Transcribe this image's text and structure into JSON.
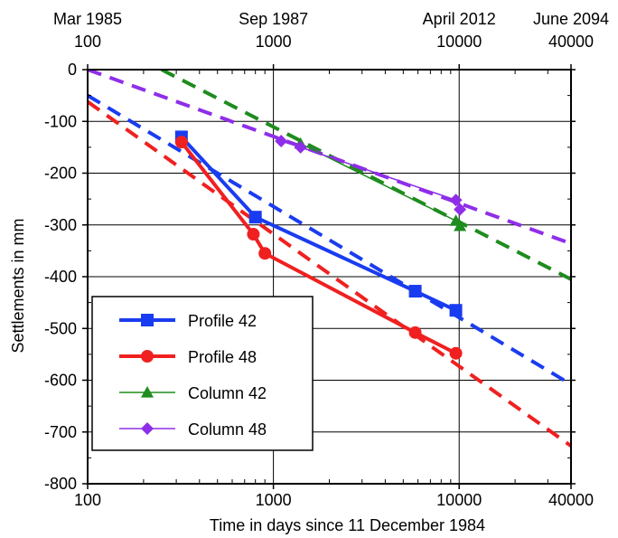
{
  "chart_data": {
    "type": "line",
    "xscale": "log",
    "xlim": [
      100,
      40000
    ],
    "ylim": [
      -800,
      0
    ],
    "grid": true,
    "xlabel": "Time in days since 11 December 1984",
    "ylabel": "Settlements in mm",
    "x_ticks": [
      100,
      1000,
      10000,
      40000
    ],
    "x_tick_labels": [
      "100",
      "1000",
      "10000",
      "40000"
    ],
    "y_ticks": [
      0,
      -100,
      -200,
      -300,
      -400,
      -500,
      -600,
      -700,
      -800
    ],
    "y_tick_labels": [
      "0",
      "-100",
      "-200",
      "-300",
      "-400",
      "-500",
      "-600",
      "-700",
      "-800"
    ],
    "top_axis": {
      "ticks": [
        100,
        1000,
        10000,
        40000
      ],
      "date_labels": [
        "Mar 1985",
        "Sep 1987",
        "April 2012",
        "June 2094"
      ],
      "day_labels": [
        "100",
        "1000",
        "10000",
        "40000"
      ]
    },
    "legend_position": "bottom-left",
    "series": [
      {
        "name": "Profile 42",
        "color": "#1a3cf0",
        "marker": "square",
        "style": "solid",
        "x": [
          320,
          800,
          5800,
          9600
        ],
        "y": [
          -130,
          -285,
          -428,
          -465
        ]
      },
      {
        "name": "Profile 48",
        "color": "#f02020",
        "marker": "circle",
        "style": "solid",
        "x": [
          320,
          780,
          900,
          5800,
          9600
        ],
        "y": [
          -140,
          -318,
          -355,
          -508,
          -548
        ]
      },
      {
        "name": "Column 42",
        "color": "#1e8c1e",
        "marker": "triangle",
        "style": "solid",
        "x": [
          1400,
          9600,
          10100
        ],
        "y": [
          -143,
          -292,
          -302
        ]
      },
      {
        "name": "Column 48",
        "color": "#8f2ee8",
        "marker": "diamond",
        "style": "solid",
        "x": [
          1100,
          1400,
          9600,
          10100
        ],
        "y": [
          -138,
          -150,
          -252,
          -270
        ]
      }
    ],
    "trend_lines": [
      {
        "color": "#1a3cf0",
        "x": [
          100,
          40000
        ],
        "y": [
          -50,
          -608
        ]
      },
      {
        "color": "#f02020",
        "x": [
          100,
          40000
        ],
        "y": [
          -62,
          -727
        ]
      },
      {
        "color": "#1e8c1e",
        "x": [
          250,
          40000
        ],
        "y": [
          0,
          -405
        ]
      },
      {
        "color": "#8f2ee8",
        "x": [
          100,
          40000
        ],
        "y": [
          0,
          -336
        ]
      }
    ]
  }
}
